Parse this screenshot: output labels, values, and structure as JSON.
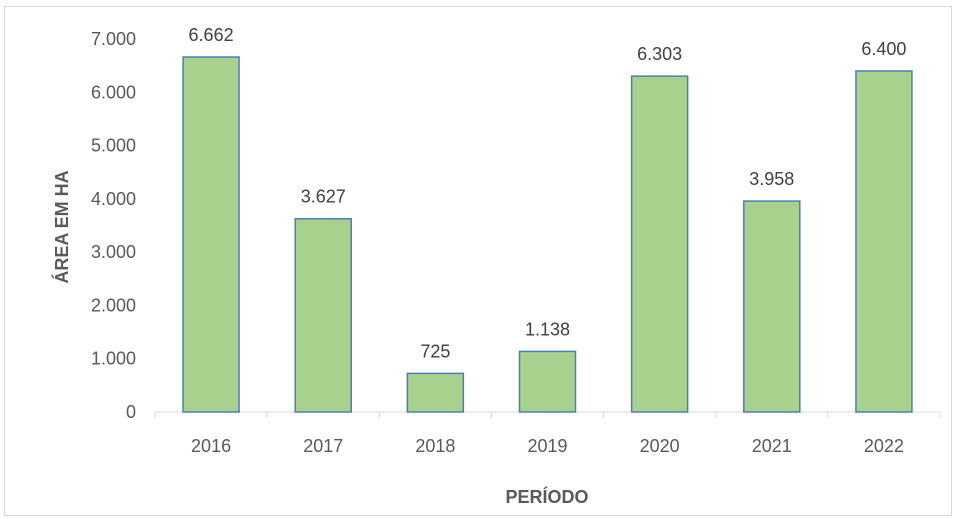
{
  "chart_data": {
    "type": "bar",
    "categories": [
      "2016",
      "2017",
      "2018",
      "2019",
      "2020",
      "2021",
      "2022"
    ],
    "values": [
      6662,
      3627,
      725,
      1138,
      6303,
      3958,
      6400
    ],
    "value_labels": [
      "6.662",
      "3.627",
      "725",
      "1.138",
      "6.303",
      "3.958",
      "6.400"
    ],
    "title": "",
    "xlabel": "PERÍODO",
    "ylabel": "ÁREA EM HA",
    "ylim": [
      0,
      7000
    ],
    "yticks": [
      0,
      1000,
      2000,
      3000,
      4000,
      5000,
      6000,
      7000
    ],
    "ytick_labels": [
      "0",
      "1.000",
      "2.000",
      "3.000",
      "4.000",
      "5.000",
      "6.000",
      "7.000"
    ],
    "grid": false,
    "legend": "none",
    "colors": {
      "bar_fill": "#a9d18e",
      "bar_stroke": "#4a7ebb",
      "axis": "#d9d9d9"
    }
  }
}
